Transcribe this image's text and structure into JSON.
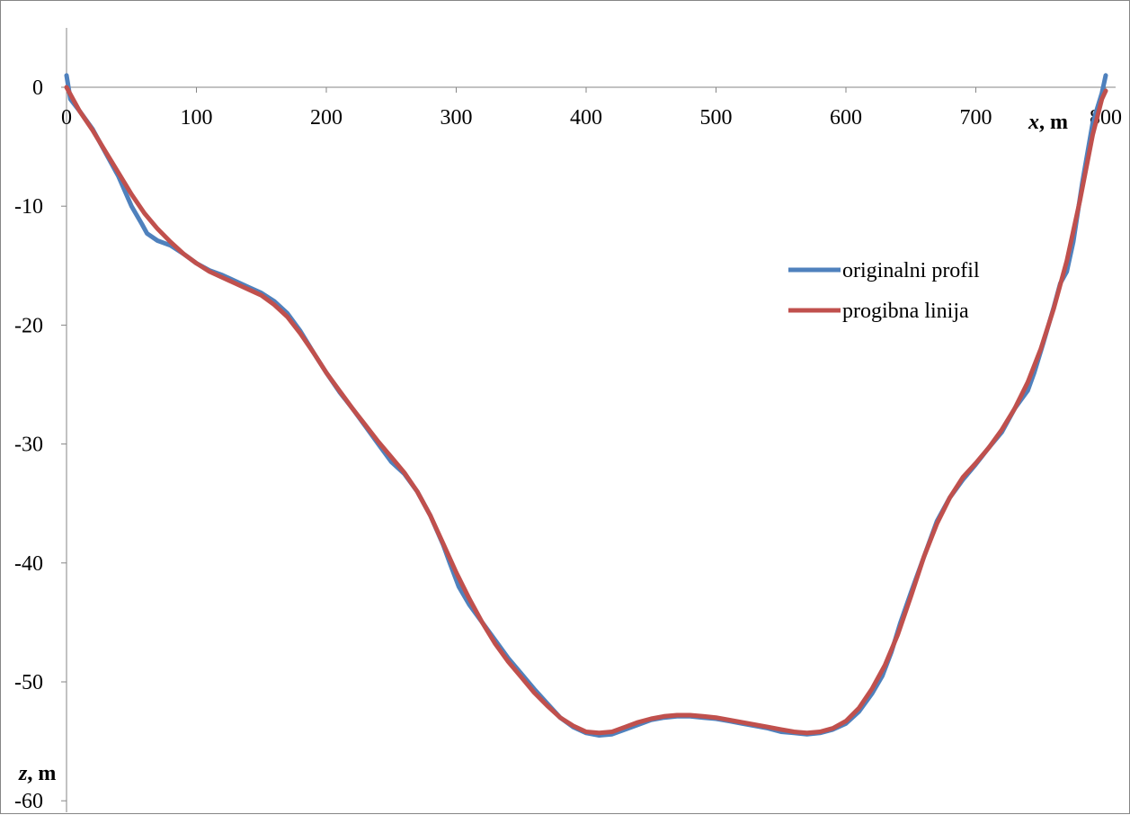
{
  "chart_data": {
    "type": "line",
    "title": "",
    "xlabel": "x, m",
    "xlabel_var": "x",
    "xlabel_unit": ", m",
    "ylabel": "z, m",
    "ylabel_var": "z",
    "ylabel_unit": ", m",
    "xlim": [
      0,
      800
    ],
    "ylim": [
      -60,
      5
    ],
    "x_ticks": [
      0,
      100,
      200,
      300,
      400,
      500,
      600,
      700,
      800
    ],
    "x_tick_labels": [
      "0",
      "100",
      "200",
      "300",
      "400",
      "500",
      "600",
      "700",
      "800"
    ],
    "y_ticks": [
      0,
      -10,
      -20,
      -30,
      -40,
      -50,
      -60
    ],
    "y_tick_labels": [
      "0",
      "-10",
      "-20",
      "-30",
      "-40",
      "-50",
      "-60"
    ],
    "grid": false,
    "legend_position": "right",
    "series": [
      {
        "name": "originalni profil",
        "color": "#4f81bd",
        "points": [
          [
            0,
            1
          ],
          [
            3,
            -1
          ],
          [
            10,
            -2
          ],
          [
            20,
            -3.5
          ],
          [
            30,
            -5.5
          ],
          [
            40,
            -7.5
          ],
          [
            50,
            -10
          ],
          [
            58,
            -11.5
          ],
          [
            62,
            -12.3
          ],
          [
            70,
            -12.9
          ],
          [
            80,
            -13.3
          ],
          [
            90,
            -14
          ],
          [
            100,
            -14.8
          ],
          [
            110,
            -15.4
          ],
          [
            120,
            -15.8
          ],
          [
            130,
            -16.3
          ],
          [
            140,
            -16.8
          ],
          [
            150,
            -17.3
          ],
          [
            160,
            -18
          ],
          [
            170,
            -19
          ],
          [
            180,
            -20.5
          ],
          [
            190,
            -22.3
          ],
          [
            200,
            -24
          ],
          [
            210,
            -25.6
          ],
          [
            220,
            -27
          ],
          [
            230,
            -28.5
          ],
          [
            240,
            -30
          ],
          [
            250,
            -31.5
          ],
          [
            260,
            -32.5
          ],
          [
            270,
            -34
          ],
          [
            280,
            -36
          ],
          [
            290,
            -38.5
          ],
          [
            295,
            -40
          ],
          [
            302,
            -42
          ],
          [
            310,
            -43.5
          ],
          [
            320,
            -45
          ],
          [
            330,
            -46.5
          ],
          [
            340,
            -48
          ],
          [
            350,
            -49.3
          ],
          [
            360,
            -50.6
          ],
          [
            370,
            -51.8
          ],
          [
            380,
            -53
          ],
          [
            390,
            -53.8
          ],
          [
            400,
            -54.3
          ],
          [
            410,
            -54.5
          ],
          [
            420,
            -54.4
          ],
          [
            430,
            -54
          ],
          [
            440,
            -53.6
          ],
          [
            450,
            -53.2
          ],
          [
            460,
            -53
          ],
          [
            470,
            -52.9
          ],
          [
            480,
            -52.9
          ],
          [
            490,
            -53
          ],
          [
            500,
            -53.1
          ],
          [
            510,
            -53.3
          ],
          [
            520,
            -53.5
          ],
          [
            530,
            -53.7
          ],
          [
            540,
            -53.9
          ],
          [
            550,
            -54.2
          ],
          [
            560,
            -54.3
          ],
          [
            570,
            -54.4
          ],
          [
            580,
            -54.3
          ],
          [
            590,
            -54
          ],
          [
            600,
            -53.5
          ],
          [
            610,
            -52.5
          ],
          [
            620,
            -51
          ],
          [
            628,
            -49.5
          ],
          [
            635,
            -47.5
          ],
          [
            642,
            -45
          ],
          [
            650,
            -42.5
          ],
          [
            660,
            -39.5
          ],
          [
            670,
            -36.5
          ],
          [
            680,
            -34.5
          ],
          [
            690,
            -33
          ],
          [
            700,
            -31.7
          ],
          [
            710,
            -30.3
          ],
          [
            720,
            -29
          ],
          [
            730,
            -27
          ],
          [
            740,
            -25.5
          ],
          [
            745,
            -24
          ],
          [
            752,
            -21.5
          ],
          [
            760,
            -18.5
          ],
          [
            765,
            -16.5
          ],
          [
            770,
            -15.5
          ],
          [
            775,
            -13
          ],
          [
            782,
            -8
          ],
          [
            790,
            -3
          ],
          [
            797,
            -0.5
          ],
          [
            800,
            1
          ]
        ]
      },
      {
        "name": "progibna linija",
        "color": "#c0504d",
        "points": [
          [
            0,
            0
          ],
          [
            5,
            -1
          ],
          [
            10,
            -2
          ],
          [
            20,
            -3.6
          ],
          [
            30,
            -5.4
          ],
          [
            40,
            -7.2
          ],
          [
            50,
            -9
          ],
          [
            60,
            -10.6
          ],
          [
            70,
            -11.9
          ],
          [
            80,
            -13
          ],
          [
            90,
            -14
          ],
          [
            100,
            -14.8
          ],
          [
            110,
            -15.5
          ],
          [
            120,
            -16
          ],
          [
            130,
            -16.5
          ],
          [
            140,
            -17
          ],
          [
            150,
            -17.5
          ],
          [
            160,
            -18.3
          ],
          [
            170,
            -19.3
          ],
          [
            180,
            -20.7
          ],
          [
            190,
            -22.3
          ],
          [
            200,
            -24
          ],
          [
            210,
            -25.5
          ],
          [
            220,
            -27
          ],
          [
            230,
            -28.4
          ],
          [
            240,
            -29.8
          ],
          [
            250,
            -31.1
          ],
          [
            260,
            -32.4
          ],
          [
            270,
            -34
          ],
          [
            280,
            -36
          ],
          [
            290,
            -38.4
          ],
          [
            300,
            -40.8
          ],
          [
            310,
            -43
          ],
          [
            320,
            -45
          ],
          [
            330,
            -46.8
          ],
          [
            340,
            -48.3
          ],
          [
            350,
            -49.6
          ],
          [
            360,
            -50.9
          ],
          [
            370,
            -52
          ],
          [
            380,
            -53
          ],
          [
            390,
            -53.7
          ],
          [
            400,
            -54.2
          ],
          [
            410,
            -54.3
          ],
          [
            420,
            -54.2
          ],
          [
            430,
            -53.8
          ],
          [
            440,
            -53.4
          ],
          [
            450,
            -53.1
          ],
          [
            460,
            -52.9
          ],
          [
            470,
            -52.8
          ],
          [
            480,
            -52.8
          ],
          [
            490,
            -52.9
          ],
          [
            500,
            -53
          ],
          [
            510,
            -53.2
          ],
          [
            520,
            -53.4
          ],
          [
            530,
            -53.6
          ],
          [
            540,
            -53.8
          ],
          [
            550,
            -54
          ],
          [
            560,
            -54.2
          ],
          [
            570,
            -54.3
          ],
          [
            580,
            -54.2
          ],
          [
            590,
            -53.9
          ],
          [
            600,
            -53.3
          ],
          [
            610,
            -52.2
          ],
          [
            620,
            -50.6
          ],
          [
            630,
            -48.6
          ],
          [
            640,
            -46
          ],
          [
            650,
            -42.8
          ],
          [
            660,
            -39.5
          ],
          [
            670,
            -36.7
          ],
          [
            680,
            -34.5
          ],
          [
            690,
            -32.8
          ],
          [
            700,
            -31.6
          ],
          [
            710,
            -30.3
          ],
          [
            720,
            -28.8
          ],
          [
            730,
            -27
          ],
          [
            740,
            -24.8
          ],
          [
            750,
            -22
          ],
          [
            760,
            -18.6
          ],
          [
            770,
            -14.6
          ],
          [
            780,
            -9.6
          ],
          [
            790,
            -4
          ],
          [
            797,
            -1
          ],
          [
            800,
            -0.3
          ]
        ]
      }
    ]
  }
}
